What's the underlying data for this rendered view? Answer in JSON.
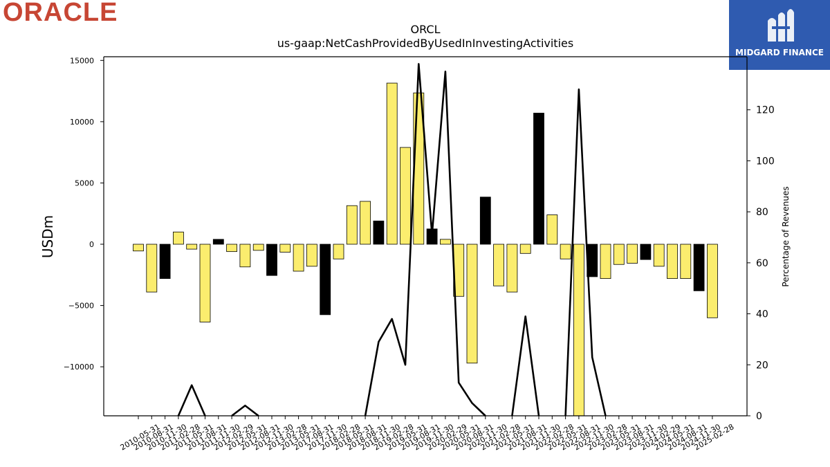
{
  "logos": {
    "left_brand": "ORACLE",
    "right_brand": "MIDGARD FINANCE",
    "right_icon": "midgard-m-icon"
  },
  "colors": {
    "bar_yellow": "#fbed6e",
    "bar_black": "#000000",
    "line": "#000000",
    "oracle_red": "#c74634",
    "midgard_blue": "#2f5bb0"
  },
  "chart_data": {
    "type": "bar",
    "title": "ORCL",
    "subtitle": "us-gaap:NetCashProvidedByUsedInInvestingActivities",
    "ylabel": "USDm",
    "y2label": "Percentage of Revenues",
    "ylim": [
      -14000,
      15300
    ],
    "y2lim": [
      0,
      140
    ],
    "yticks": [
      15000,
      10000,
      5000,
      0,
      -5000,
      -10000
    ],
    "ytick_labels": [
      "15000",
      "10000",
      "5000",
      "0",
      "−5000",
      "−10000"
    ],
    "y2ticks": [
      0,
      20,
      40,
      60,
      80,
      100,
      120
    ],
    "grid": false,
    "categories": [
      "2010-05-31",
      "2010-08-31",
      "2010-11-30",
      "2011-02-28",
      "2011-05-31",
      "2011-08-31",
      "2011-11-30",
      "2012-02-29",
      "2012-05-31",
      "2012-08-31",
      "2012-11-30",
      "2013-02-28",
      "2013-05-31",
      "2017-08-31",
      "2017-11-30",
      "2018-02-28",
      "2018-05-31",
      "2018-08-31",
      "2018-11-30",
      "2019-02-28",
      "2019-05-31",
      "2019-08-31",
      "2019-11-30",
      "2020-02-29",
      "2020-05-31",
      "2020-08-31",
      "2020-11-30",
      "2021-02-28",
      "2021-05-31",
      "2021-08-31",
      "2021-11-30",
      "2022-02-28",
      "2022-05-31",
      "2022-08-31",
      "2022-11-30",
      "2023-02-28",
      "2023-05-31",
      "2023-08-31",
      "2023-11-30",
      "2024-02-29",
      "2024-05-31",
      "2024-08-31",
      "2024-11-30",
      "2025-02-28"
    ],
    "series": [
      {
        "values": [
          -550,
          -3900,
          -2800,
          1000,
          -400,
          -6350,
          400,
          -600,
          -1850,
          -500,
          -2550,
          -650,
          -2200,
          -1800,
          -5750,
          -1200,
          3150,
          3500,
          1900,
          13150,
          7900,
          12350,
          1250,
          400,
          -4250,
          -9700,
          3850,
          -3400,
          -3900,
          -750,
          10700,
          2400,
          -1200,
          -14000,
          -2650,
          -2800,
          -1650,
          -1550,
          -1250,
          -1800,
          -2800,
          -2800,
          -3800,
          -6000
        ],
        "colors": [
          "yellow",
          "yellow",
          "black",
          "yellow",
          "yellow",
          "yellow",
          "black",
          "yellow",
          "yellow",
          "yellow",
          "black",
          "yellow",
          "yellow",
          "yellow",
          "black",
          "yellow",
          "yellow",
          "yellow",
          "black",
          "yellow",
          "yellow",
          "yellow",
          "black",
          "yellow",
          "yellow",
          "yellow",
          "black",
          "yellow",
          "yellow",
          "yellow",
          "black",
          "yellow",
          "yellow",
          "yellow",
          "black",
          "yellow",
          "yellow",
          "yellow",
          "black",
          "yellow",
          "yellow",
          "yellow",
          "black",
          "yellow"
        ]
      },
      {
        "axis": "right",
        "kind": "line",
        "values": [
          null,
          null,
          null,
          0,
          12,
          0,
          null,
          0,
          4,
          0,
          null,
          null,
          null,
          null,
          null,
          null,
          null,
          0,
          29,
          38,
          20,
          138,
          71,
          135,
          13,
          5,
          0,
          null,
          0,
          39,
          0,
          null,
          0,
          128,
          23,
          0,
          null,
          null,
          null,
          null,
          null,
          null,
          null,
          null
        ]
      }
    ]
  }
}
